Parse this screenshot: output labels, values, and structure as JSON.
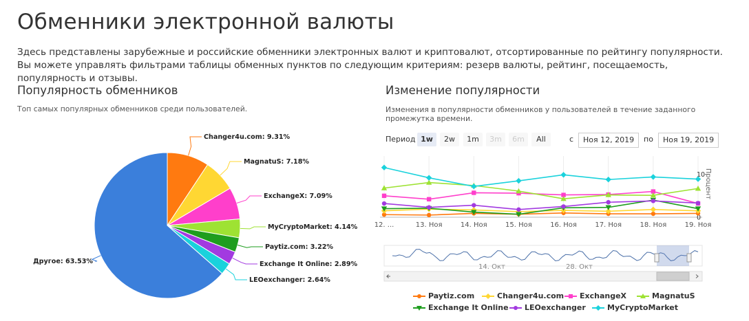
{
  "page": {
    "title": "Обменники электронной валюты",
    "description": "Здесь представлены зарубежные и российские обменники электронных валют и криптовалют, отсортированные по рейтингу популярности. Вы можете управлять фильтрами таблицы обменных пунктов по следующим критериям: резерв валюты, рейтинг, посещаемость, популярность и отзывы."
  },
  "popularity": {
    "title": "Популярность обменников",
    "subtitle": "Топ самых популярных обменников среди пользователей."
  },
  "changes": {
    "title": "Изменение популярности",
    "subtitle_line1": "Изменения в популярности обменников у пользователей в течение заданного",
    "subtitle_line2": "промежутка времени.",
    "period_label": "Период",
    "ranges": [
      {
        "label": "1w",
        "state": "active"
      },
      {
        "label": "2w",
        "state": "normal"
      },
      {
        "label": "1m",
        "state": "normal"
      },
      {
        "label": "3m",
        "state": "disabled"
      },
      {
        "label": "6m",
        "state": "disabled"
      },
      {
        "label": "All",
        "state": "normal"
      }
    ],
    "from_label": "с",
    "from_date": "Ноя 12, 2019",
    "to_label": "по",
    "to_date": "Ноя 19, 2019",
    "navigator_labels": [
      "14. Окт",
      "28. Окт"
    ]
  },
  "colors": {
    "Paytiz.com": "#ff7a10",
    "Changer4u.com": "#ffd733",
    "ExchangeX": "#ff3fcb",
    "MagnatuS": "#9ee233",
    "Exchange It Online": "#1e9d1e",
    "LEOexchanger": "#a23ae0",
    "MyCryptoMarket": "#1ad2dc",
    "Другое": "#3b7fdb"
  },
  "chart_data": [
    {
      "type": "pie",
      "slices": [
        {
          "label": "Changer4u.com",
          "value": 9.31,
          "display": "Changer4u.com: 9.31%",
          "color": "#ff7a10"
        },
        {
          "label": "MagnatuS",
          "value": 7.18,
          "display": "MagnatuS: 7.18%",
          "color": "#ffd733"
        },
        {
          "label": "ExchangeX",
          "value": 7.09,
          "display": "ExchangeX: 7.09%",
          "color": "#ff3fcb"
        },
        {
          "label": "MyCryptoMarket",
          "value": 4.14,
          "display": "MyCryptoMarket: 4.14%",
          "color": "#9ee233"
        },
        {
          "label": "Paytiz.com",
          "value": 3.22,
          "display": "Paytiz.com: 3.22%",
          "color": "#1e9d1e"
        },
        {
          "label": "Exchange It Online",
          "value": 2.89,
          "display": "Exchange It Online: 2.89%",
          "color": "#a23ae0"
        },
        {
          "label": "LEOexchanger",
          "value": 2.64,
          "display": "LEOexchanger: 2.64%",
          "color": "#1ad2dc"
        },
        {
          "label": "Другое",
          "value": 63.53,
          "display": "Другое: 63.53%",
          "color": "#3b7fdb"
        }
      ]
    },
    {
      "type": "line",
      "x": [
        "12. ...",
        "13. Ноя",
        "14. Ноя",
        "15. Ноя",
        "16. Ноя",
        "17. Ноя",
        "18. Ноя",
        "19. Ноя"
      ],
      "ylabel": "Процент",
      "y_ticks": [
        0,
        10
      ],
      "ylim": [
        0,
        13
      ],
      "series": [
        {
          "name": "Paytiz.com",
          "color": "#ff7a10",
          "marker": "circle",
          "values": [
            0.6,
            0.5,
            0.9,
            0.7,
            1.0,
            0.8,
            0.8,
            0.9
          ]
        },
        {
          "name": "Changer4u.com",
          "color": "#ffd733",
          "marker": "diamond",
          "values": [
            1.5,
            1.9,
            1.7,
            1.3,
            1.6,
            1.4,
            1.8,
            1.5
          ]
        },
        {
          "name": "ExchangeX",
          "color": "#ff3fcb",
          "marker": "square",
          "values": [
            5.0,
            4.2,
            5.7,
            5.6,
            5.2,
            5.3,
            6.0,
            3.2
          ]
        },
        {
          "name": "MagnatuS",
          "color": "#9ee233",
          "marker": "triangle",
          "values": [
            6.8,
            8.1,
            7.4,
            6.1,
            4.3,
            5.2,
            5.1,
            6.7
          ]
        },
        {
          "name": "Exchange It Online",
          "color": "#1e9d1e",
          "marker": "triangle-down",
          "values": [
            2.0,
            2.1,
            1.2,
            0.7,
            2.2,
            2.3,
            4.0,
            2.0
          ]
        },
        {
          "name": "LEOexchanger",
          "color": "#a23ae0",
          "marker": "circle",
          "values": [
            3.2,
            2.3,
            2.8,
            1.8,
            2.5,
            3.5,
            3.8,
            3.3
          ]
        },
        {
          "name": "MyCryptoMarket",
          "color": "#1ad2dc",
          "marker": "diamond",
          "values": [
            11.6,
            9.2,
            7.2,
            8.5,
            9.9,
            8.8,
            9.4,
            8.9
          ]
        }
      ]
    }
  ]
}
